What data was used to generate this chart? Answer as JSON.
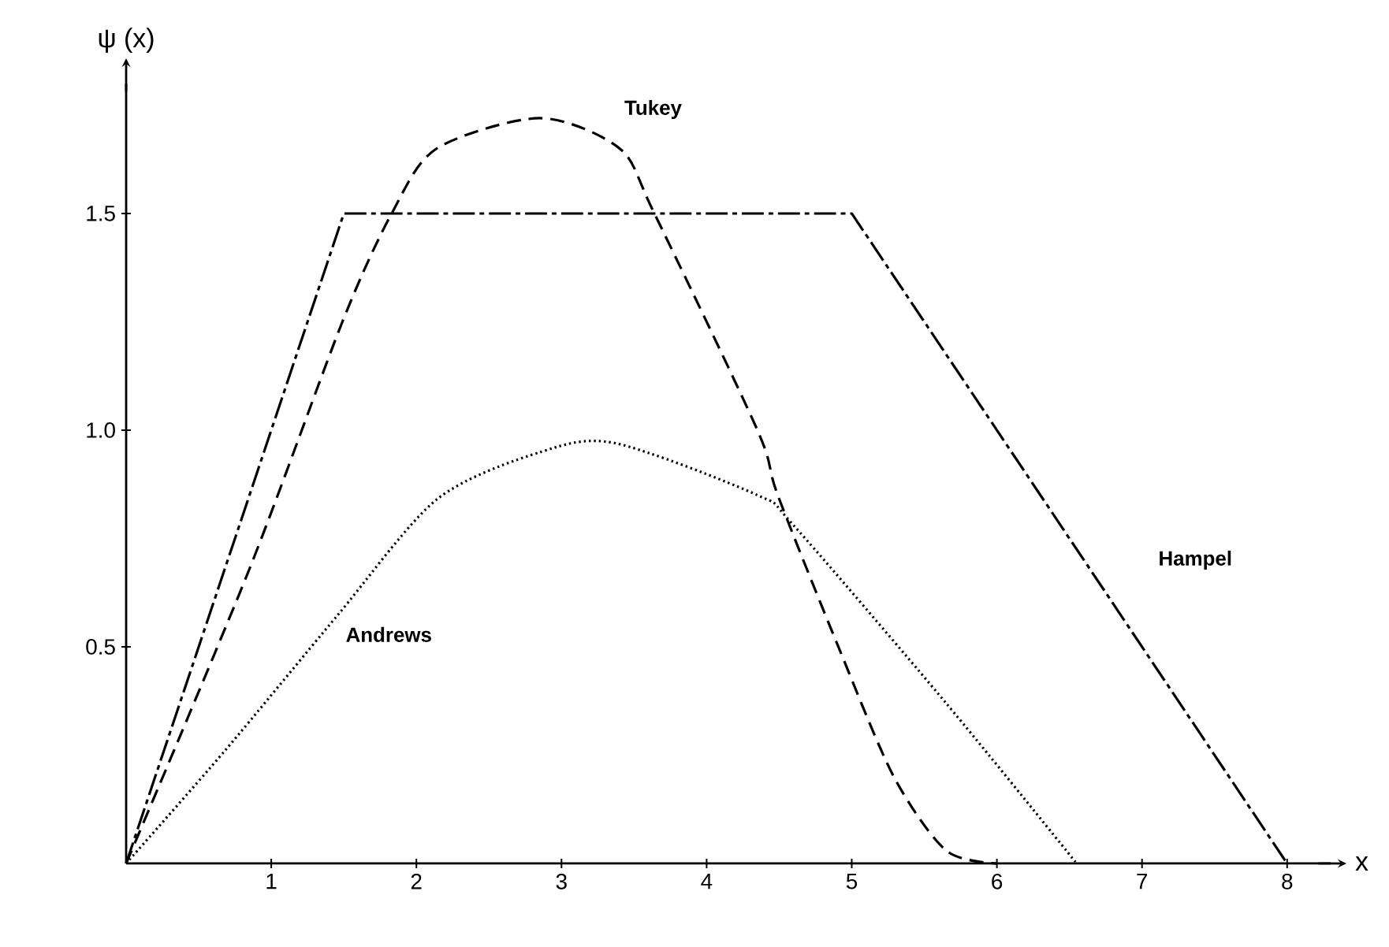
{
  "chart_data": {
    "type": "line",
    "xlabel": "x",
    "ylabel": "ψ (x)",
    "xlim": [
      0,
      8.3
    ],
    "ylim": [
      0,
      1.8
    ],
    "xticks": [
      1,
      2,
      3,
      4,
      5,
      6,
      7,
      8
    ],
    "yticks": [
      {
        "value": 0.5,
        "label": "0.5"
      },
      {
        "value": 1,
        "label": "1.0"
      },
      {
        "value": 1.5,
        "label": "1.5"
      }
    ],
    "grid": false,
    "series": [
      {
        "name": "Tukey",
        "color": "#000000",
        "line_style": "dashed",
        "x": [
          0,
          0.85,
          1.49,
          1.83,
          2.14,
          2.85,
          3.4,
          3.64,
          4.35,
          4.49,
          4.92,
          5.29,
          5.65,
          6.0
        ],
        "values": [
          0,
          0.68,
          1.25,
          1.5,
          1.65,
          1.72,
          1.65,
          1.5,
          1.0,
          0.85,
          0.49,
          0.2,
          0.03,
          0
        ]
      },
      {
        "name": "Andrews",
        "color": "#000000",
        "line_style": "dotted",
        "x": [
          0,
          0.68,
          1.45,
          2.14,
          2.86,
          3.37,
          4.35,
          4.6,
          5.65,
          6.55
        ],
        "values": [
          0,
          0.26,
          0.57,
          0.84,
          0.95,
          0.97,
          0.85,
          0.78,
          0.37,
          0
        ]
      },
      {
        "name": "Hampel",
        "color": "#000000",
        "line_style": "dashdot",
        "x": [
          0,
          1.5,
          5,
          8
        ],
        "values": [
          0,
          1.5,
          1.5,
          0
        ]
      }
    ]
  }
}
